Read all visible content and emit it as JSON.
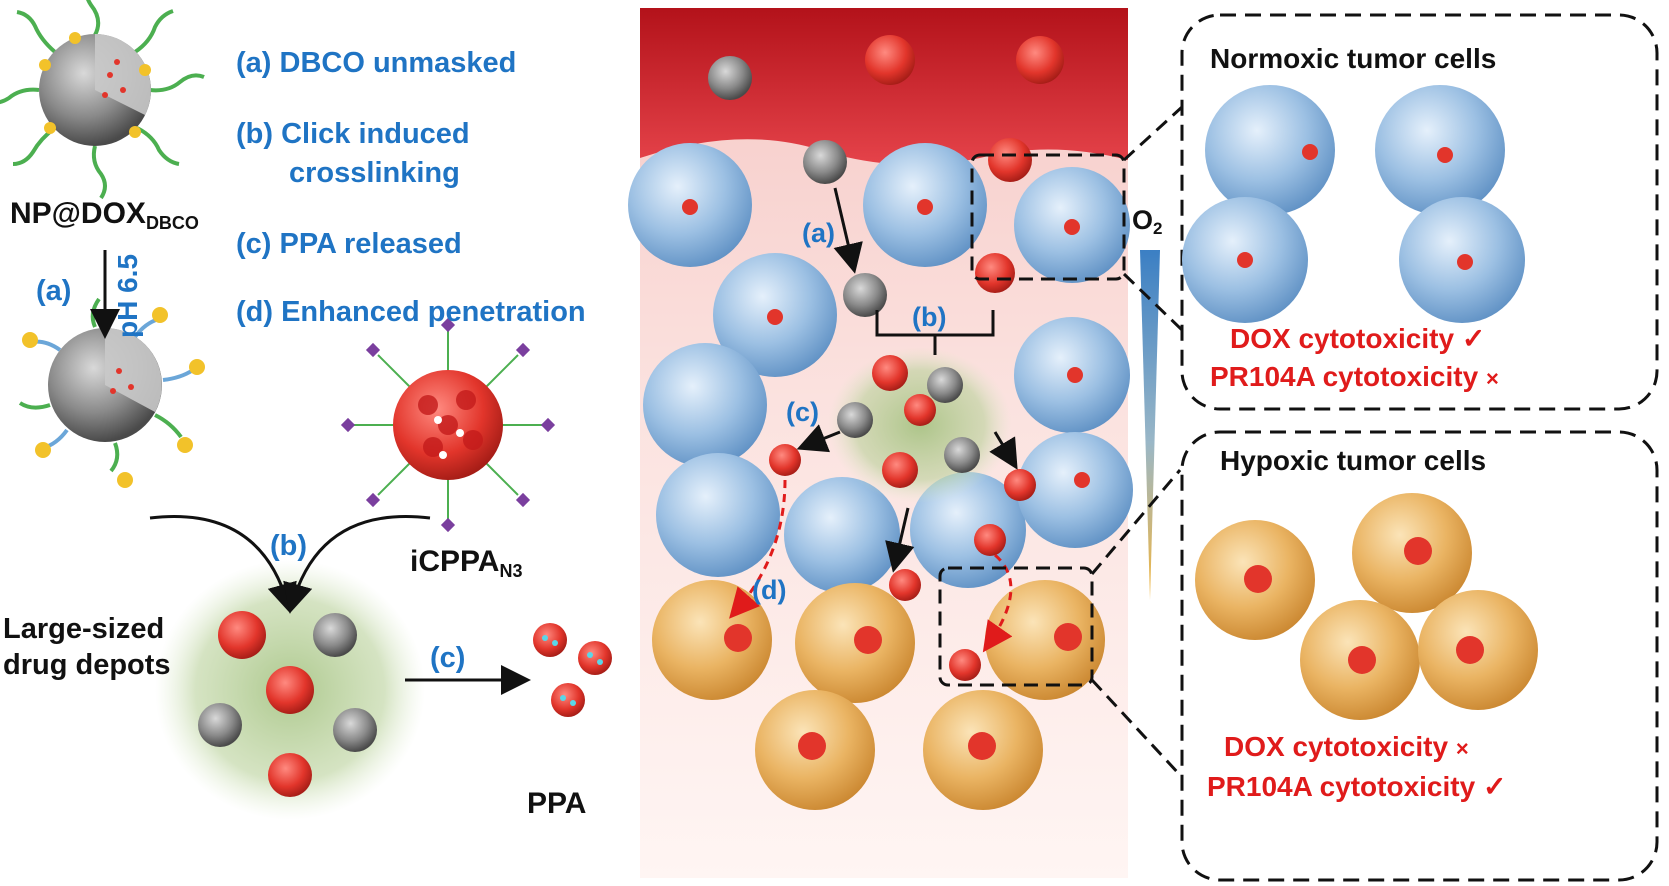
{
  "steps": [
    {
      "tag": "(a)",
      "text": "DBCO  unmasked"
    },
    {
      "tag": "(b)",
      "text": "Click induced",
      "text2": "crosslinking"
    },
    {
      "tag": "(c)",
      "text": "PPA released"
    },
    {
      "tag": "(d)",
      "text": "Enhanced penetration"
    }
  ],
  "labels": {
    "np_main": "NP@DOX",
    "np_sub": "DBCO",
    "ph": "pH 6.5",
    "a": "(a)",
    "b": "(b)",
    "c": "(c)",
    "icppa_main": "iCPPA",
    "icppa_sub": "N3",
    "depot_line1": "Large-sized",
    "depot_line2": "drug depots",
    "ppa": "PPA",
    "tissue_a": "(a)",
    "tissue_b": "(b)",
    "tissue_c": "(c)",
    "tissue_d": "(d)",
    "o2_main": "O",
    "o2_sub": "2"
  },
  "normoxic": {
    "title": "Normoxic tumor cells",
    "dox": "DOX  cytotoxicity",
    "dox_mark": "✓",
    "pr": "PR104A cytotoxicity",
    "pr_mark": "×"
  },
  "hypoxic": {
    "title": "Hypoxic tumor cells",
    "dox": "DOX  cytotoxicity",
    "dox_mark": "×",
    "pr": "PR104A cytotoxicity",
    "pr_mark": "✓"
  },
  "colors": {
    "label_blue": "#1f74c4",
    "text_red": "#e01b1b",
    "normoxic_cell": "#8fb6dc",
    "hypoxic_cell": "#e6a94d",
    "drug_red": "#e2352b",
    "vessel_red": "#c41b1b"
  }
}
